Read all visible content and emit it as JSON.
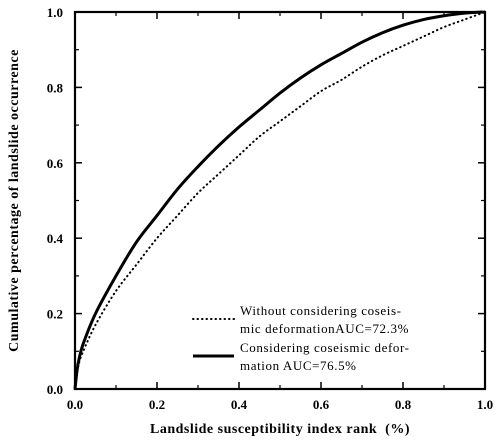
{
  "chart_data": {
    "type": "line",
    "xlabel": "Landslide susceptibility index rank  (%)",
    "ylabel": "Cumulative percentage of landslide occurrence",
    "xlim": [
      0,
      1
    ],
    "ylim": [
      0,
      1
    ],
    "xticks": [
      "0.0",
      "0.2",
      "0.4",
      "0.6",
      "0.8",
      "1.0"
    ],
    "yticks": [
      "0.0",
      "0.2",
      "0.4",
      "0.6",
      "0.8",
      "1.0"
    ],
    "grid": false,
    "legend_position": "bottom-right",
    "series": [
      {
        "name_lines": [
          "Without considering coseis-",
          "mic deformationAUC=72.3%"
        ],
        "style": "dotted",
        "color": "#000000",
        "x": [
          0,
          0.005,
          0.01,
          0.02,
          0.05,
          0.1,
          0.15,
          0.2,
          0.25,
          0.3,
          0.35,
          0.4,
          0.45,
          0.5,
          0.55,
          0.6,
          0.65,
          0.7,
          0.75,
          0.8,
          0.85,
          0.9,
          0.95,
          1.0
        ],
        "y": [
          0,
          0.04,
          0.07,
          0.1,
          0.17,
          0.26,
          0.33,
          0.4,
          0.46,
          0.52,
          0.57,
          0.62,
          0.67,
          0.71,
          0.75,
          0.79,
          0.82,
          0.855,
          0.885,
          0.91,
          0.935,
          0.96,
          0.98,
          1.0
        ]
      },
      {
        "name_lines": [
          "Considering coseismic defor-",
          "mation AUC=76.5%"
        ],
        "style": "solid",
        "color": "#000000",
        "x": [
          0,
          0.005,
          0.01,
          0.02,
          0.05,
          0.1,
          0.15,
          0.2,
          0.25,
          0.3,
          0.35,
          0.4,
          0.45,
          0.5,
          0.55,
          0.6,
          0.65,
          0.7,
          0.75,
          0.8,
          0.85,
          0.9,
          0.95,
          1.0
        ],
        "y": [
          0,
          0.05,
          0.08,
          0.12,
          0.2,
          0.3,
          0.39,
          0.46,
          0.53,
          0.59,
          0.645,
          0.695,
          0.74,
          0.785,
          0.825,
          0.86,
          0.89,
          0.92,
          0.945,
          0.965,
          0.98,
          0.99,
          0.997,
          1.0
        ]
      }
    ]
  }
}
